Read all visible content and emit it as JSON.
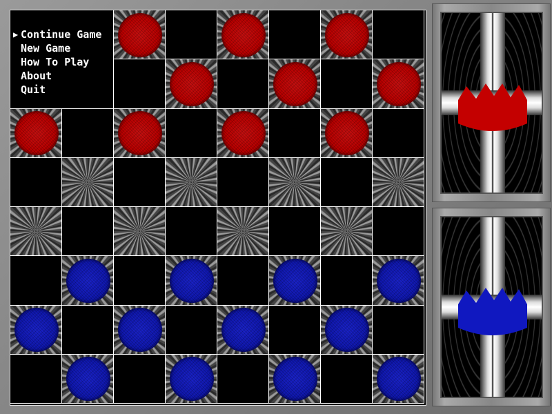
{
  "menu": {
    "items": [
      {
        "label": "Continue Game",
        "selected": true
      },
      {
        "label": "New Game",
        "selected": false
      },
      {
        "label": "How To Play",
        "selected": false
      },
      {
        "label": "About",
        "selected": false
      },
      {
        "label": "Quit",
        "selected": false
      }
    ],
    "selector_icon": "triangle-right"
  },
  "board": {
    "rows": [
      "..r.r.r.",
      "...r.r.r",
      "r.r.r.r.",
      "........",
      "........",
      ".b.b.b.b",
      "b.b.b.b.",
      ".b.b.b.b"
    ],
    "legend": {
      "r": "red",
      "b": "blue",
      ".": "empty"
    }
  },
  "colors": {
    "red_piece": "#bb0000",
    "blue_piece": "#1018b0",
    "board_dark": "#000000",
    "grid": "#ffffff"
  },
  "panels": [
    {
      "player": "red",
      "icon": "crown-icon",
      "color": "#c40000"
    },
    {
      "player": "blue",
      "icon": "crown-icon",
      "color": "#1018c0"
    }
  ]
}
